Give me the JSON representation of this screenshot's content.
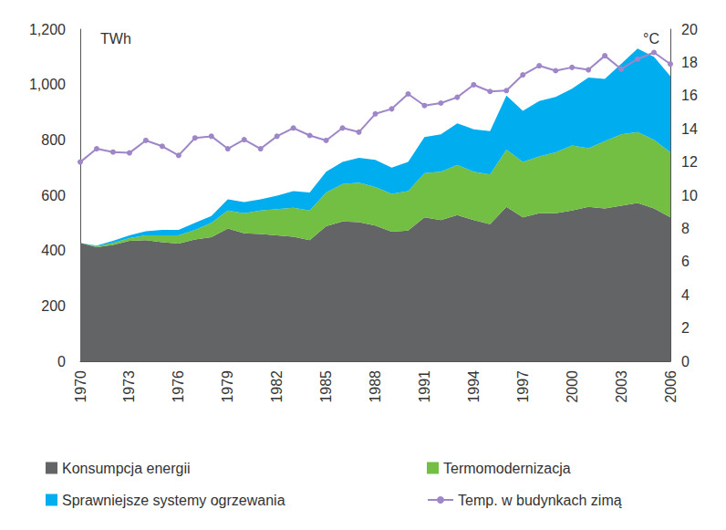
{
  "chart_data": {
    "type": "area",
    "y_label": "TWh",
    "y2_label": "°C",
    "categories": [
      "1970",
      null,
      null,
      "1973",
      null,
      null,
      "1976",
      null,
      null,
      "1979",
      null,
      null,
      "1982",
      null,
      null,
      "1985",
      null,
      null,
      "1988",
      null,
      null,
      "1991",
      null,
      null,
      "1994",
      null,
      null,
      "1997",
      null,
      null,
      "2000",
      null,
      null,
      "2003",
      null,
      null,
      "2006"
    ],
    "stacked": true,
    "grid": false,
    "legend": "bottom",
    "ylim": [
      0,
      1200
    ],
    "yticks": [
      0,
      200,
      400,
      600,
      800,
      1000,
      1200
    ],
    "y2lim": [
      0,
      20
    ],
    "y2ticks": [
      0,
      2,
      4,
      6,
      8,
      10,
      12,
      14,
      16,
      18,
      20
    ],
    "series": [
      {
        "name": "Konsumpcja energii",
        "type": "area",
        "color": "#636466",
        "values": [
          428,
          412,
          420,
          435,
          438,
          430,
          425,
          440,
          448,
          480,
          462,
          460,
          455,
          450,
          438,
          488,
          505,
          503,
          490,
          468,
          472,
          520,
          510,
          528,
          510,
          495,
          558,
          520,
          535,
          535,
          545,
          558,
          552,
          562,
          572,
          552,
          520
        ]
      },
      {
        "name": "Termomodernizacja",
        "type": "area",
        "color": "#72bf44",
        "values": [
          0,
          3,
          8,
          10,
          17,
          25,
          30,
          35,
          52,
          65,
          73,
          85,
          95,
          105,
          107,
          122,
          135,
          142,
          140,
          137,
          143,
          160,
          175,
          182,
          175,
          180,
          207,
          200,
          205,
          220,
          235,
          212,
          243,
          258,
          256,
          248,
          235
        ]
      },
      {
        "name": "Sprawniejsze systemy ogrzewania",
        "type": "area",
        "color": "#00aeef",
        "values": [
          0,
          3,
          7,
          10,
          15,
          20,
          20,
          25,
          25,
          40,
          40,
          40,
          48,
          60,
          65,
          75,
          80,
          90,
          98,
          95,
          105,
          130,
          135,
          150,
          153,
          157,
          195,
          185,
          200,
          200,
          205,
          255,
          225,
          255,
          302,
          300,
          275
        ]
      },
      {
        "name": "Temp. w budynkach zimą",
        "type": "line",
        "axis": "y2",
        "marker": "circle",
        "color": "#9e86c8",
        "values": [
          12.0,
          12.8,
          12.6,
          12.55,
          13.3,
          12.95,
          12.4,
          13.45,
          13.55,
          12.8,
          13.35,
          12.8,
          13.55,
          14.05,
          13.6,
          13.3,
          14.05,
          13.8,
          14.9,
          15.2,
          16.1,
          15.4,
          15.55,
          15.9,
          16.65,
          16.25,
          16.3,
          17.25,
          17.8,
          17.5,
          17.7,
          17.55,
          18.4,
          17.6,
          18.2,
          18.6,
          17.9
        ]
      }
    ]
  }
}
